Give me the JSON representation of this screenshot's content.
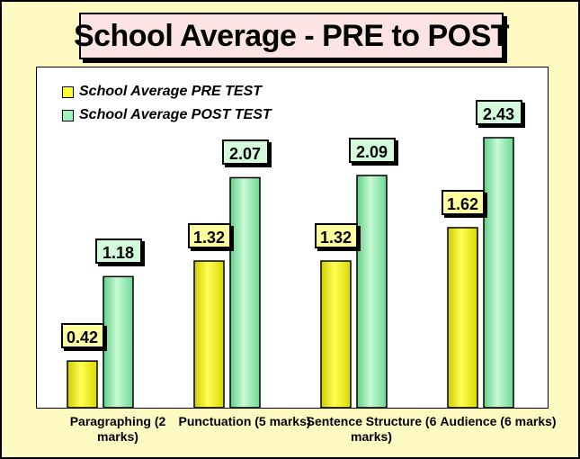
{
  "chart_data": {
    "type": "bar",
    "title": "School Average - PRE to POST",
    "categories": [
      "Paragraphing (2 marks)",
      "Punctuation (5 marks)",
      "Sentence Structure (6 marks)",
      "Audience (6 marks)"
    ],
    "series": [
      {
        "name": "School Average PRE TEST",
        "values": [
          0.42,
          1.32,
          1.32,
          1.62
        ],
        "color": "#ffff33",
        "label_bg": "#ffffa0"
      },
      {
        "name": "School Average POST TEST",
        "values": [
          1.18,
          2.07,
          2.09,
          2.43
        ],
        "color": "#9ff2b8",
        "label_bg": "#d4fadc"
      }
    ],
    "ylim": [
      0,
      2.5
    ],
    "grid": false,
    "legend_position": "top-left"
  }
}
